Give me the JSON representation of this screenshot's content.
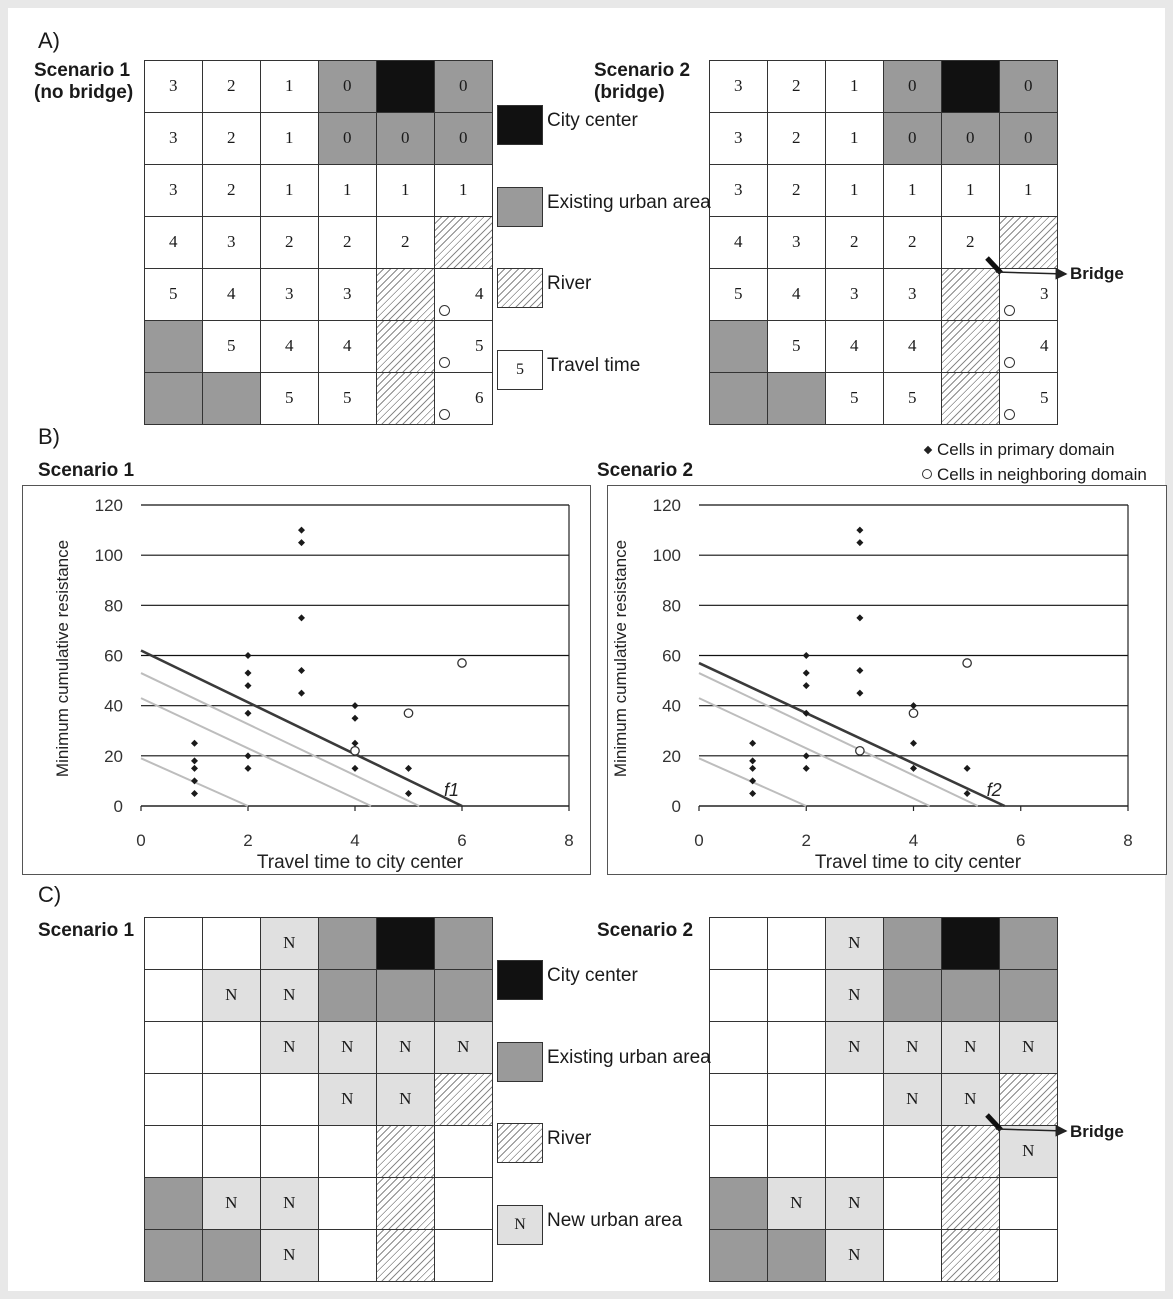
{
  "panels": {
    "a_label": "A)",
    "b_label": "B)",
    "c_label": "C)"
  },
  "panel_a": {
    "scenario1_title_line1": "Scenario 1",
    "scenario1_title_line2": "(no bridge)",
    "scenario2_title_line1": "Scenario 2",
    "scenario2_title_line2": "(bridge)",
    "legend": [
      {
        "type": "center",
        "label": "City center"
      },
      {
        "type": "urban",
        "label": "Existing urban area"
      },
      {
        "type": "river",
        "label": "River"
      },
      {
        "type": "plain",
        "box_text": "5",
        "label": "Travel time"
      }
    ],
    "bridge_label": "Bridge",
    "grid1": [
      [
        {
          "t": "white",
          "v": "3"
        },
        {
          "t": "white",
          "v": "2"
        },
        {
          "t": "white",
          "v": "1"
        },
        {
          "t": "urban",
          "v": "0"
        },
        {
          "t": "center",
          "v": ""
        },
        {
          "t": "urban",
          "v": "0"
        }
      ],
      [
        {
          "t": "white",
          "v": "3"
        },
        {
          "t": "white",
          "v": "2"
        },
        {
          "t": "white",
          "v": "1"
        },
        {
          "t": "urban",
          "v": "0"
        },
        {
          "t": "urban",
          "v": "0"
        },
        {
          "t": "urban",
          "v": "0"
        }
      ],
      [
        {
          "t": "white",
          "v": "3"
        },
        {
          "t": "white",
          "v": "2"
        },
        {
          "t": "white",
          "v": "1"
        },
        {
          "t": "white",
          "v": "1"
        },
        {
          "t": "white",
          "v": "1"
        },
        {
          "t": "white",
          "v": "1"
        }
      ],
      [
        {
          "t": "white",
          "v": "4"
        },
        {
          "t": "white",
          "v": "3"
        },
        {
          "t": "white",
          "v": "2"
        },
        {
          "t": "white",
          "v": "2"
        },
        {
          "t": "white",
          "v": "2"
        },
        {
          "t": "river",
          "v": ""
        }
      ],
      [
        {
          "t": "white",
          "v": "5"
        },
        {
          "t": "white",
          "v": "4"
        },
        {
          "t": "white",
          "v": "3"
        },
        {
          "t": "white",
          "v": "3"
        },
        {
          "t": "river",
          "v": ""
        },
        {
          "t": "white",
          "v": "4",
          "nb": true
        }
      ],
      [
        {
          "t": "urban",
          "v": ""
        },
        {
          "t": "white",
          "v": "5"
        },
        {
          "t": "white",
          "v": "4"
        },
        {
          "t": "white",
          "v": "4"
        },
        {
          "t": "river",
          "v": ""
        },
        {
          "t": "white",
          "v": "5",
          "nb": true
        }
      ],
      [
        {
          "t": "urban",
          "v": ""
        },
        {
          "t": "urban",
          "v": ""
        },
        {
          "t": "white",
          "v": "5"
        },
        {
          "t": "white",
          "v": "5"
        },
        {
          "t": "river",
          "v": ""
        },
        {
          "t": "white",
          "v": "6",
          "nb": true
        }
      ]
    ],
    "grid2": [
      [
        {
          "t": "white",
          "v": "3"
        },
        {
          "t": "white",
          "v": "2"
        },
        {
          "t": "white",
          "v": "1"
        },
        {
          "t": "urban",
          "v": "0"
        },
        {
          "t": "center",
          "v": ""
        },
        {
          "t": "urban",
          "v": "0"
        }
      ],
      [
        {
          "t": "white",
          "v": "3"
        },
        {
          "t": "white",
          "v": "2"
        },
        {
          "t": "white",
          "v": "1"
        },
        {
          "t": "urban",
          "v": "0"
        },
        {
          "t": "urban",
          "v": "0"
        },
        {
          "t": "urban",
          "v": "0"
        }
      ],
      [
        {
          "t": "white",
          "v": "3"
        },
        {
          "t": "white",
          "v": "2"
        },
        {
          "t": "white",
          "v": "1"
        },
        {
          "t": "white",
          "v": "1"
        },
        {
          "t": "white",
          "v": "1"
        },
        {
          "t": "white",
          "v": "1"
        }
      ],
      [
        {
          "t": "white",
          "v": "4"
        },
        {
          "t": "white",
          "v": "3"
        },
        {
          "t": "white",
          "v": "2"
        },
        {
          "t": "white",
          "v": "2"
        },
        {
          "t": "white",
          "v": "2"
        },
        {
          "t": "river",
          "v": ""
        }
      ],
      [
        {
          "t": "white",
          "v": "5"
        },
        {
          "t": "white",
          "v": "4"
        },
        {
          "t": "white",
          "v": "3"
        },
        {
          "t": "white",
          "v": "3"
        },
        {
          "t": "river",
          "v": ""
        },
        {
          "t": "white",
          "v": "3",
          "nb": true
        }
      ],
      [
        {
          "t": "urban",
          "v": ""
        },
        {
          "t": "white",
          "v": "5"
        },
        {
          "t": "white",
          "v": "4"
        },
        {
          "t": "white",
          "v": "4"
        },
        {
          "t": "river",
          "v": ""
        },
        {
          "t": "white",
          "v": "4",
          "nb": true
        }
      ],
      [
        {
          "t": "urban",
          "v": ""
        },
        {
          "t": "urban",
          "v": ""
        },
        {
          "t": "white",
          "v": "5"
        },
        {
          "t": "white",
          "v": "5"
        },
        {
          "t": "river",
          "v": ""
        },
        {
          "t": "white",
          "v": "5",
          "nb": true
        }
      ]
    ]
  },
  "panel_c": {
    "scenario1_title": "Scenario 1",
    "scenario2_title": "Scenario 2",
    "legend": [
      {
        "type": "center",
        "label": "City center"
      },
      {
        "type": "urban",
        "label": "Existing urban area"
      },
      {
        "type": "river",
        "label": "River"
      },
      {
        "type": "newurban",
        "box_text": "N",
        "label": "New urban area"
      }
    ],
    "bridge_label": "Bridge",
    "grid1": [
      [
        {
          "t": "white",
          "v": ""
        },
        {
          "t": "white",
          "v": ""
        },
        {
          "t": "newurban",
          "v": "N"
        },
        {
          "t": "urban",
          "v": ""
        },
        {
          "t": "center",
          "v": ""
        },
        {
          "t": "urban",
          "v": ""
        }
      ],
      [
        {
          "t": "white",
          "v": ""
        },
        {
          "t": "newurban",
          "v": "N"
        },
        {
          "t": "newurban",
          "v": "N"
        },
        {
          "t": "urban",
          "v": ""
        },
        {
          "t": "urban",
          "v": ""
        },
        {
          "t": "urban",
          "v": ""
        }
      ],
      [
        {
          "t": "white",
          "v": ""
        },
        {
          "t": "white",
          "v": ""
        },
        {
          "t": "newurban",
          "v": "N"
        },
        {
          "t": "newurban",
          "v": "N"
        },
        {
          "t": "newurban",
          "v": "N"
        },
        {
          "t": "newurban",
          "v": "N"
        }
      ],
      [
        {
          "t": "white",
          "v": ""
        },
        {
          "t": "white",
          "v": ""
        },
        {
          "t": "white",
          "v": ""
        },
        {
          "t": "newurban",
          "v": "N"
        },
        {
          "t": "newurban",
          "v": "N"
        },
        {
          "t": "river",
          "v": ""
        }
      ],
      [
        {
          "t": "white",
          "v": ""
        },
        {
          "t": "white",
          "v": ""
        },
        {
          "t": "white",
          "v": ""
        },
        {
          "t": "white",
          "v": ""
        },
        {
          "t": "river",
          "v": ""
        },
        {
          "t": "white",
          "v": ""
        }
      ],
      [
        {
          "t": "urban",
          "v": ""
        },
        {
          "t": "newurban",
          "v": "N"
        },
        {
          "t": "newurban",
          "v": "N"
        },
        {
          "t": "white",
          "v": ""
        },
        {
          "t": "river",
          "v": ""
        },
        {
          "t": "white",
          "v": ""
        }
      ],
      [
        {
          "t": "urban",
          "v": ""
        },
        {
          "t": "urban",
          "v": ""
        },
        {
          "t": "newurban",
          "v": "N"
        },
        {
          "t": "white",
          "v": ""
        },
        {
          "t": "river",
          "v": ""
        },
        {
          "t": "white",
          "v": ""
        }
      ]
    ],
    "grid2": [
      [
        {
          "t": "white",
          "v": ""
        },
        {
          "t": "white",
          "v": ""
        },
        {
          "t": "newurban",
          "v": "N"
        },
        {
          "t": "urban",
          "v": ""
        },
        {
          "t": "center",
          "v": ""
        },
        {
          "t": "urban",
          "v": ""
        }
      ],
      [
        {
          "t": "white",
          "v": ""
        },
        {
          "t": "white",
          "v": ""
        },
        {
          "t": "newurban",
          "v": "N"
        },
        {
          "t": "urban",
          "v": ""
        },
        {
          "t": "urban",
          "v": ""
        },
        {
          "t": "urban",
          "v": ""
        }
      ],
      [
        {
          "t": "white",
          "v": ""
        },
        {
          "t": "white",
          "v": ""
        },
        {
          "t": "newurban",
          "v": "N"
        },
        {
          "t": "newurban",
          "v": "N"
        },
        {
          "t": "newurban",
          "v": "N"
        },
        {
          "t": "newurban",
          "v": "N"
        }
      ],
      [
        {
          "t": "white",
          "v": ""
        },
        {
          "t": "white",
          "v": ""
        },
        {
          "t": "white",
          "v": ""
        },
        {
          "t": "newurban",
          "v": "N"
        },
        {
          "t": "newurban",
          "v": "N"
        },
        {
          "t": "river",
          "v": ""
        }
      ],
      [
        {
          "t": "white",
          "v": ""
        },
        {
          "t": "white",
          "v": ""
        },
        {
          "t": "white",
          "v": ""
        },
        {
          "t": "white",
          "v": ""
        },
        {
          "t": "river",
          "v": ""
        },
        {
          "t": "newurban",
          "v": "N"
        }
      ],
      [
        {
          "t": "urban",
          "v": ""
        },
        {
          "t": "newurban",
          "v": "N"
        },
        {
          "t": "newurban",
          "v": "N"
        },
        {
          "t": "white",
          "v": ""
        },
        {
          "t": "river",
          "v": ""
        },
        {
          "t": "white",
          "v": ""
        }
      ],
      [
        {
          "t": "urban",
          "v": ""
        },
        {
          "t": "urban",
          "v": ""
        },
        {
          "t": "newurban",
          "v": "N"
        },
        {
          "t": "white",
          "v": ""
        },
        {
          "t": "river",
          "v": ""
        },
        {
          "t": "white",
          "v": ""
        }
      ]
    ]
  },
  "legend_b": {
    "primary": "Cells in primary domain",
    "neighboring": "Cells in neighboring domain"
  },
  "chart_data": [
    {
      "type": "scatter",
      "title": "Scenario 1",
      "xlabel": "Travel time to city center",
      "ylabel": "Minimum cumulative resistance",
      "xlim": [
        0,
        8
      ],
      "ylim": [
        0,
        120
      ],
      "xticks": [
        0,
        2,
        4,
        6,
        8
      ],
      "yticks": [
        0,
        20,
        40,
        60,
        80,
        100,
        120
      ],
      "grid": "horizontal",
      "series": [
        {
          "name": "Cells in primary domain",
          "marker": "diamond",
          "points": [
            [
              1,
              5
            ],
            [
              1,
              10
            ],
            [
              1,
              15
            ],
            [
              1,
              18
            ],
            [
              1,
              25
            ],
            [
              2,
              15
            ],
            [
              2,
              20
            ],
            [
              2,
              37
            ],
            [
              2,
              48
            ],
            [
              2,
              53
            ],
            [
              2,
              60
            ],
            [
              3,
              45
            ],
            [
              3,
              54
            ],
            [
              3,
              75
            ],
            [
              3,
              105
            ],
            [
              3,
              110
            ],
            [
              4,
              15
            ],
            [
              4,
              25
            ],
            [
              4,
              35
            ],
            [
              4,
              40
            ],
            [
              5,
              5
            ],
            [
              5,
              15
            ]
          ]
        },
        {
          "name": "Cells in neighboring domain",
          "marker": "circle",
          "points": [
            [
              4,
              22
            ],
            [
              5,
              37
            ],
            [
              6,
              57
            ]
          ]
        }
      ],
      "line": {
        "label": "f1",
        "x0": 0,
        "y0": 62,
        "x1": 6,
        "y1": 0
      },
      "guide_lines": [
        {
          "x0": 0,
          "y0": 53,
          "x1": 5.2,
          "y1": 0
        },
        {
          "x0": 0,
          "y0": 43,
          "x1": 4.3,
          "y1": 0
        },
        {
          "x0": 0,
          "y0": 19,
          "x1": 2.0,
          "y1": 0
        }
      ],
      "line_label": "f1"
    },
    {
      "type": "scatter",
      "title": "Scenario 2",
      "xlabel": "Travel time to city center",
      "ylabel": "Minimum cumulative resistance",
      "xlim": [
        0,
        8
      ],
      "ylim": [
        0,
        120
      ],
      "xticks": [
        0,
        2,
        4,
        6,
        8
      ],
      "yticks": [
        0,
        20,
        40,
        60,
        80,
        100,
        120
      ],
      "grid": "horizontal",
      "series": [
        {
          "name": "Cells in primary domain",
          "marker": "diamond",
          "points": [
            [
              1,
              5
            ],
            [
              1,
              10
            ],
            [
              1,
              15
            ],
            [
              1,
              18
            ],
            [
              1,
              25
            ],
            [
              2,
              15
            ],
            [
              2,
              20
            ],
            [
              2,
              37
            ],
            [
              2,
              48
            ],
            [
              2,
              53
            ],
            [
              2,
              60
            ],
            [
              3,
              45
            ],
            [
              3,
              54
            ],
            [
              3,
              75
            ],
            [
              3,
              105
            ],
            [
              3,
              110
            ],
            [
              4,
              15
            ],
            [
              4,
              25
            ],
            [
              4,
              40
            ],
            [
              5,
              5
            ],
            [
              5,
              15
            ]
          ]
        },
        {
          "name": "Cells in neighboring domain",
          "marker": "circle",
          "points": [
            [
              3,
              22
            ],
            [
              4,
              37
            ],
            [
              5,
              57
            ]
          ]
        }
      ],
      "line": {
        "label": "f2",
        "x0": 0,
        "y0": 57,
        "x1": 5.7,
        "y1": 0
      },
      "guide_lines": [
        {
          "x0": 0,
          "y0": 53,
          "x1": 5.2,
          "y1": 0
        },
        {
          "x0": 0,
          "y0": 43,
          "x1": 4.3,
          "y1": 0
        },
        {
          "x0": 0,
          "y0": 19,
          "x1": 2.0,
          "y1": 0
        }
      ],
      "line_label": "f2"
    }
  ]
}
